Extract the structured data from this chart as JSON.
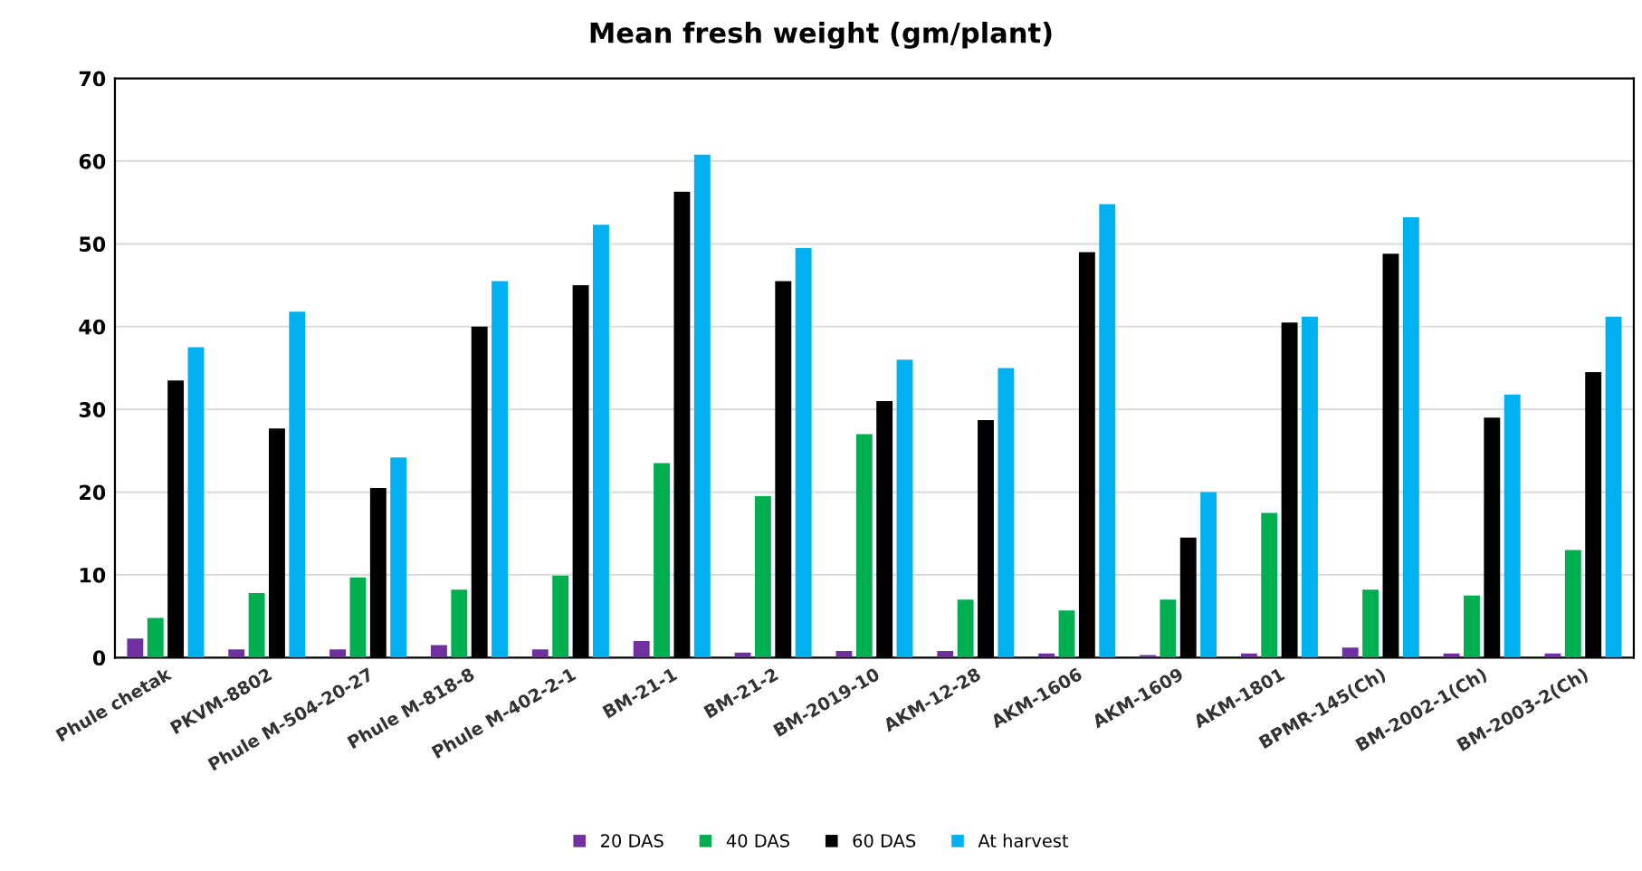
{
  "chart_data": {
    "type": "bar",
    "title": "Mean fresh weight (gm/plant)",
    "categories": [
      "Phule chetak",
      "PKVM-8802",
      "Phule M-504-20-27",
      "Phule M-818-8",
      "Phule M-402-2-1",
      "BM-21-1",
      "BM-21-2",
      "BM-2019-10",
      "AKM-12-28",
      "AKM-1606",
      "AKM-1609",
      "AKM-1801",
      "BPMR-145(Ch)",
      "BM-2002-1(Ch)",
      "BM-2003-2(Ch)"
    ],
    "series": [
      {
        "name": "20 DAS",
        "color": "#7030a0",
        "values": [
          2.3,
          1,
          1,
          1.5,
          1,
          2,
          0.6,
          0.8,
          0.8,
          0.5,
          0.3,
          0.5,
          1.2,
          0.5,
          0.5
        ]
      },
      {
        "name": "40 DAS",
        "color": "#00b050",
        "values": [
          4.8,
          7.8,
          9.7,
          8.2,
          9.9,
          23.5,
          19.5,
          27,
          7,
          5.7,
          7,
          17.5,
          8.2,
          7.5,
          13
        ]
      },
      {
        "name": "60 DAS",
        "color": "#000000",
        "values": [
          33.5,
          27.7,
          20.5,
          40,
          45,
          56.3,
          45.5,
          31,
          28.7,
          49,
          14.5,
          40.5,
          48.8,
          29,
          34.5
        ]
      },
      {
        "name": "At harvest",
        "color": "#00b0f0",
        "values": [
          37.5,
          41.8,
          24.2,
          45.5,
          52.3,
          60.8,
          49.5,
          36,
          35,
          54.8,
          20,
          41.2,
          53.2,
          31.8,
          41.2
        ]
      }
    ],
    "ylim": [
      0,
      70
    ],
    "yticks": [
      0,
      10,
      20,
      30,
      40,
      50,
      60,
      70
    ],
    "grid": "y",
    "legend": "bottom"
  }
}
